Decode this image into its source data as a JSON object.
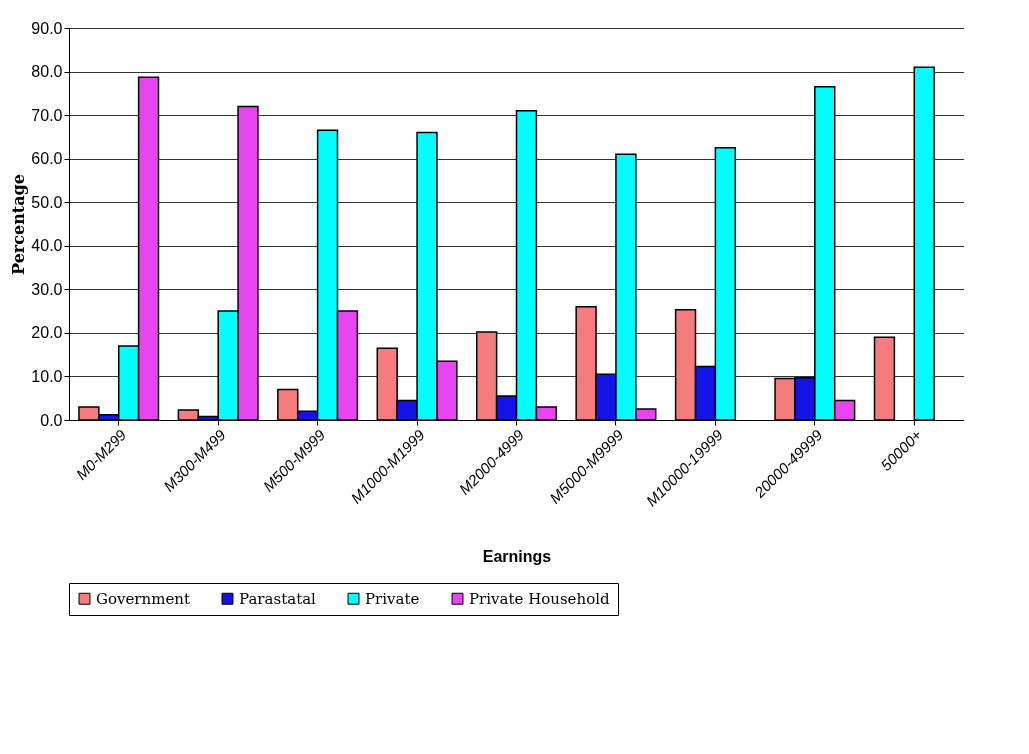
{
  "chart_data": {
    "type": "bar",
    "xlabel": "Earnings",
    "ylabel": "Percentage",
    "categories": [
      "M0-M299",
      "M300-M499",
      "M500-M999",
      "M1000-M1999",
      "M2000-4999",
      "M5000-M9999",
      "M10000-19999",
      "20000-49999",
      "50000+"
    ],
    "series": [
      {
        "name": "Government",
        "color": "#f47c7c",
        "values": [
          3.0,
          2.3,
          7.0,
          16.5,
          20.2,
          26.0,
          25.3,
          9.5,
          19.0
        ]
      },
      {
        "name": "Parastatal",
        "color": "#1414e6",
        "values": [
          1.2,
          0.8,
          2.0,
          4.5,
          5.5,
          10.5,
          12.3,
          9.7,
          null
        ]
      },
      {
        "name": "Private",
        "color": "#00ffff",
        "values": [
          17.0,
          25.0,
          66.5,
          66.0,
          71.0,
          61.0,
          62.5,
          76.5,
          81.0
        ]
      },
      {
        "name": "Private Household",
        "color": "#e645f0",
        "values": [
          78.7,
          72.0,
          25.0,
          13.5,
          3.0,
          2.5,
          null,
          4.5,
          null
        ]
      }
    ],
    "ylim": [
      0,
      90
    ],
    "yticks": [
      {
        "value": 0,
        "label": "0.0"
      },
      {
        "value": 10,
        "label": "10.0"
      },
      {
        "value": 20,
        "label": "20.0"
      },
      {
        "value": 30,
        "label": "30.0"
      },
      {
        "value": 40,
        "label": "40.0"
      },
      {
        "value": 50,
        "label": "50.0"
      },
      {
        "value": 60,
        "label": "60.0"
      },
      {
        "value": 70,
        "label": "70.0"
      },
      {
        "value": 80,
        "label": "80.0"
      },
      {
        "value": 90,
        "label": "90.0"
      }
    ],
    "grid": "y",
    "legend": "bottom"
  }
}
